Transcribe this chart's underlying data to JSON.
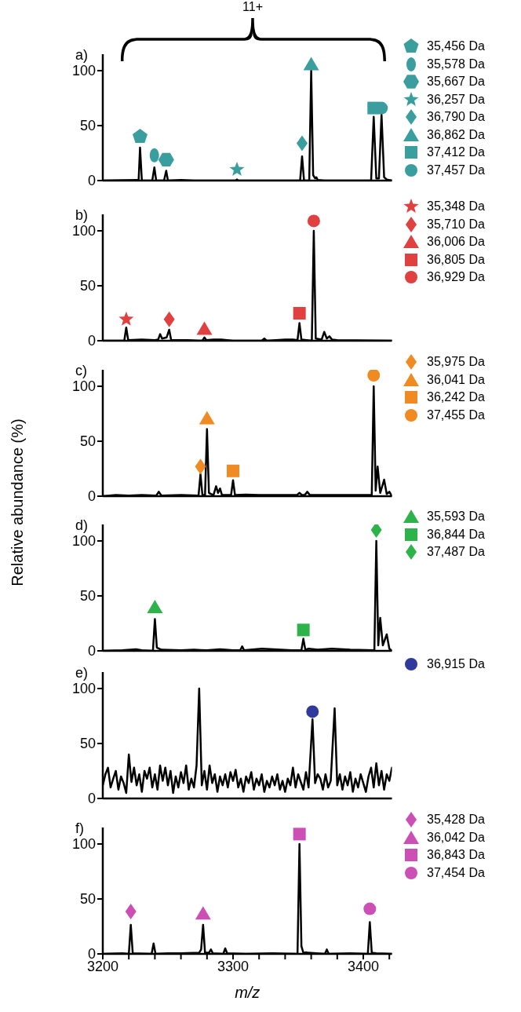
{
  "chart_data": [
    {
      "type": "line",
      "title": "a)",
      "annotations": [
        "11+"
      ],
      "xlim": [
        3200,
        3422
      ],
      "ylim": [
        0,
        115
      ],
      "yticks": [
        0,
        50,
        100
      ],
      "tick_labels": "y",
      "legend": "right",
      "series": [
        {
          "type": "line",
          "color": "#000000",
          "marker": "none",
          "x": [
            3200,
            3226,
            3227.5,
            3228.6,
            3230,
            3238,
            3239.6,
            3241,
            3247,
            3248.7,
            3250,
            3260,
            3270,
            3302,
            3303,
            3304,
            3351.5,
            3353,
            3354.5,
            3358.5,
            3360,
            3361.5,
            3363,
            3364,
            3365,
            3370,
            3406,
            3408,
            3410,
            3412,
            3414,
            3416,
            3418,
            3422
          ],
          "values": [
            0,
            0.5,
            0,
            30,
            0,
            0,
            12,
            0,
            0,
            9,
            0,
            0.5,
            0,
            0,
            1,
            0,
            0,
            22,
            0,
            0,
            100,
            5,
            2,
            3,
            0.5,
            0,
            0,
            58,
            2,
            2,
            60,
            3,
            1,
            0
          ]
        },
        {
          "type": "scatter",
          "name": "35,456 Da",
          "color": "#3a9e9e",
          "x": [
            3228.6
          ],
          "values": [
            40
          ]
        },
        {
          "type": "scatter",
          "name": "35,578 Da",
          "color": "#3a9e9e",
          "marker": "circle",
          "x": [
            3239.6
          ],
          "values": [
            23
          ]
        },
        {
          "type": "scatter",
          "name": "35,667 Da",
          "color": "#3a9e9e",
          "x": [
            3248.7
          ],
          "values": [
            19
          ]
        },
        {
          "type": "scatter",
          "name": "36,257 Da",
          "color": "#3a9e9e",
          "marker": "star",
          "x": [
            3303
          ],
          "values": [
            10
          ]
        },
        {
          "type": "scatter",
          "name": "36,790 Da",
          "color": "#3a9e9e",
          "marker": "diamond",
          "x": [
            3353
          ],
          "values": [
            34
          ]
        },
        {
          "type": "scatter",
          "name": "36,862 Da",
          "color": "#3a9e9e",
          "marker": "triangle",
          "x": [
            3360
          ],
          "values": [
            106
          ]
        },
        {
          "type": "scatter",
          "name": "37,412 Da",
          "color": "#3a9e9e",
          "marker": "square",
          "x": [
            3408
          ],
          "values": [
            66
          ]
        },
        {
          "type": "scatter",
          "name": "37,457 Da",
          "color": "#3a9e9e",
          "marker": "circle",
          "x": [
            3414
          ],
          "values": [
            66
          ]
        }
      ]
    },
    {
      "type": "line",
      "title": "b)",
      "xlim": [
        3200,
        3422
      ],
      "ylim": [
        0,
        115
      ],
      "yticks": [
        0,
        50,
        100
      ],
      "tick_labels": "y",
      "legend": "right",
      "series": [
        {
          "type": "line",
          "color": "#000000",
          "marker": "none",
          "x": [
            3200,
            3216.5,
            3218,
            3219.5,
            3230,
            3240,
            3242.5,
            3244,
            3245.5,
            3249,
            3251,
            3252.5,
            3265,
            3276.5,
            3278,
            3279.5,
            3285,
            3291,
            3300,
            3322,
            3324,
            3326,
            3340,
            3346,
            3349.5,
            3351,
            3352.5,
            3360.5,
            3362,
            3363.5,
            3368,
            3370,
            3372,
            3374,
            3376,
            3380,
            3422
          ],
          "values": [
            0,
            0,
            12,
            0.5,
            1,
            0.5,
            1,
            6,
            2,
            3,
            10,
            0.5,
            0.5,
            0,
            3,
            0.5,
            1,
            1,
            0,
            0,
            2,
            0,
            1,
            1,
            0.5,
            16,
            1,
            0,
            100,
            2,
            1,
            8,
            2,
            4,
            1,
            0.5,
            0
          ]
        },
        {
          "type": "scatter",
          "name": "35,348 Da",
          "color": "#e0403f",
          "marker": "star",
          "x": [
            3218
          ],
          "values": [
            19.5
          ]
        },
        {
          "type": "scatter",
          "name": "35,710 Da",
          "color": "#e0403f",
          "marker": "diamond",
          "x": [
            3251
          ],
          "values": [
            19.5
          ]
        },
        {
          "type": "scatter",
          "name": "36,006 Da",
          "color": "#e0403f",
          "marker": "triangle",
          "x": [
            3278
          ],
          "values": [
            11
          ]
        },
        {
          "type": "scatter",
          "name": "36,805 Da",
          "color": "#e0403f",
          "marker": "square",
          "x": [
            3351
          ],
          "values": [
            25
          ]
        },
        {
          "type": "scatter",
          "name": "36,929 Da",
          "color": "#e0403f",
          "marker": "circle",
          "x": [
            3362
          ],
          "values": [
            109
          ]
        }
      ]
    },
    {
      "type": "line",
      "title": "c)",
      "ylabel": "Relative abundance (%)",
      "xlim": [
        3200,
        3422
      ],
      "ylim": [
        0,
        115
      ],
      "yticks": [
        0,
        50,
        100
      ],
      "tick_labels": "y",
      "legend": "right",
      "series": [
        {
          "type": "line",
          "color": "#000000",
          "marker": "none",
          "x": [
            3200,
            3210,
            3220,
            3230,
            3241,
            3243,
            3245,
            3260,
            3273.5,
            3275,
            3276.5,
            3278.5,
            3280,
            3281.5,
            3283,
            3285,
            3287,
            3288.5,
            3290,
            3291.5,
            3298.5,
            3300,
            3301.5,
            3310,
            3320,
            3335,
            3349,
            3351,
            3353,
            3355,
            3357,
            3359,
            3380,
            3395,
            3406.5,
            3408,
            3409.5,
            3411,
            3413,
            3416,
            3418,
            3420,
            3422
          ],
          "values": [
            0,
            1,
            0.5,
            1,
            0.5,
            4,
            0.5,
            1,
            0.5,
            20,
            1,
            1,
            61,
            3,
            2,
            1,
            9,
            3,
            7,
            1,
            1,
            14.5,
            1,
            1.5,
            1,
            1,
            1,
            3,
            1,
            1,
            4,
            1,
            1,
            1,
            1,
            100,
            5,
            27,
            3,
            15,
            2,
            4,
            0
          ]
        },
        {
          "type": "scatter",
          "name": "35,975 Da",
          "color": "#f08a22",
          "marker": "diamond",
          "x": [
            3275
          ],
          "values": [
            27
          ]
        },
        {
          "type": "scatter",
          "name": "36,041 Da",
          "color": "#f08a22",
          "marker": "triangle",
          "x": [
            3280
          ],
          "values": [
            71
          ]
        },
        {
          "type": "scatter",
          "name": "36,242 Da",
          "color": "#f08a22",
          "marker": "square",
          "x": [
            3300
          ],
          "values": [
            23
          ]
        },
        {
          "type": "scatter",
          "name": "37,455 Da",
          "color": "#f08a22",
          "marker": "circle",
          "x": [
            3408
          ],
          "values": [
            110
          ]
        }
      ]
    },
    {
      "type": "line",
      "title": "d)",
      "xlim": [
        3200,
        3422
      ],
      "ylim": [
        0,
        115
      ],
      "yticks": [
        0,
        50,
        100
      ],
      "tick_labels": "y",
      "legend": "right",
      "series": [
        {
          "type": "line",
          "color": "#000000",
          "marker": "none",
          "x": [
            3200,
            3215,
            3225.5,
            3230,
            3238.5,
            3240,
            3241.5,
            3245,
            3260,
            3270,
            3280,
            3290,
            3300,
            3305.5,
            3307,
            3308.5,
            3322,
            3331,
            3345,
            3352.5,
            3354,
            3355.5,
            3358,
            3365,
            3376,
            3390,
            3408.5,
            3410,
            3411.5,
            3413,
            3415,
            3418,
            3420,
            3422
          ],
          "values": [
            0,
            0.5,
            1.5,
            0.5,
            0,
            29,
            3,
            1,
            0.5,
            1,
            0.5,
            1.5,
            0.5,
            0.5,
            4,
            0.5,
            2,
            1.5,
            0.5,
            0.5,
            11,
            1,
            2,
            1,
            2,
            1,
            0.5,
            100,
            5,
            30,
            5,
            15,
            2,
            0
          ]
        },
        {
          "type": "scatter",
          "name": "35,593 Da",
          "color": "#2db34a",
          "marker": "triangle",
          "x": [
            3240
          ],
          "values": [
            40
          ]
        },
        {
          "type": "scatter",
          "name": "36,844 Da",
          "color": "#2db34a",
          "marker": "square",
          "x": [
            3354
          ],
          "values": [
            19
          ]
        },
        {
          "type": "scatter",
          "name": "37,487 Da",
          "color": "#2db34a",
          "marker": "diamond",
          "x": [
            3410
          ],
          "values": [
            110
          ]
        }
      ]
    },
    {
      "type": "line",
      "title": "e)",
      "xlim": [
        3200,
        3422
      ],
      "ylim": [
        0,
        115
      ],
      "yticks": [
        0,
        50,
        100
      ],
      "tick_labels": "y",
      "legend": "right",
      "series": [
        {
          "type": "line",
          "color": "#000000",
          "marker": "none",
          "x": [
            3200,
            3202,
            3204,
            3206,
            3208,
            3210,
            3212,
            3214,
            3216,
            3218,
            3220,
            3222,
            3224,
            3226,
            3228,
            3230,
            3232,
            3234,
            3236,
            3238,
            3240,
            3242,
            3244,
            3246,
            3248,
            3250,
            3252,
            3254,
            3256,
            3258,
            3260,
            3262,
            3264,
            3266,
            3268,
            3270,
            3272,
            3274,
            3276,
            3278,
            3280,
            3282,
            3284,
            3286,
            3288,
            3290,
            3292,
            3294,
            3296,
            3298,
            3300,
            3302,
            3304,
            3306,
            3308,
            3310,
            3312,
            3314,
            3316,
            3318,
            3320,
            3322,
            3324,
            3326,
            3328,
            3330,
            3332,
            3334,
            3336,
            3338,
            3340,
            3342,
            3344,
            3346,
            3348,
            3350,
            3352,
            3354,
            3356,
            3358,
            3361,
            3363,
            3365,
            3367,
            3369,
            3371,
            3373,
            3375,
            3378,
            3380,
            3382,
            3384,
            3386,
            3388,
            3390,
            3392,
            3394,
            3396,
            3398,
            3400,
            3402,
            3404,
            3406,
            3408,
            3410,
            3412,
            3414,
            3416,
            3418,
            3420,
            3422
          ],
          "values": [
            12,
            22,
            28,
            10,
            18,
            25,
            8,
            20,
            14,
            5,
            40,
            15,
            28,
            12,
            22,
            6,
            25,
            18,
            28,
            10,
            22,
            8,
            30,
            16,
            28,
            12,
            25,
            5,
            20,
            10,
            24,
            14,
            30,
            8,
            18,
            10,
            30,
            100,
            12,
            25,
            8,
            30,
            14,
            22,
            6,
            20,
            12,
            22,
            10,
            24,
            16,
            26,
            10,
            18,
            6,
            20,
            14,
            24,
            8,
            18,
            12,
            22,
            6,
            16,
            10,
            20,
            12,
            22,
            8,
            16,
            6,
            18,
            12,
            28,
            10,
            22,
            15,
            8,
            24,
            10,
            72,
            14,
            22,
            18,
            8,
            22,
            10,
            16,
            82,
            12,
            22,
            8,
            20,
            12,
            24,
            6,
            18,
            10,
            22,
            14,
            6,
            20,
            28,
            10,
            32,
            12,
            25,
            8,
            22,
            16,
            28
          ]
        },
        {
          "type": "scatter",
          "name": "36,915 Da",
          "color": "#2f3a9c",
          "marker": "circle",
          "x": [
            3361
          ],
          "values": [
            79
          ]
        }
      ]
    },
    {
      "type": "line",
      "title": "f)",
      "xlabel": "m/z",
      "xlim": [
        3200,
        3422
      ],
      "ylim": [
        0,
        115
      ],
      "yticks": [
        0,
        50,
        100
      ],
      "xticks": [
        3200,
        {
          "value": 3220,
          "label": null
        },
        {
          "value": 3240,
          "label": null
        },
        {
          "value": 3260,
          "label": null
        },
        {
          "value": 3280,
          "label": null
        },
        3300,
        {
          "value": 3320,
          "label": null
        },
        {
          "value": 3340,
          "label": null
        },
        {
          "value": 3360,
          "label": null
        },
        {
          "value": 3380,
          "label": null
        },
        3400,
        {
          "value": 3420,
          "label": null
        }
      ],
      "legend": "right",
      "series": [
        {
          "type": "line",
          "color": "#000000",
          "marker": "none",
          "x": [
            3200,
            3215,
            3220,
            3221.5,
            3223,
            3237.5,
            3239,
            3240.5,
            3250,
            3260,
            3274,
            3275.5,
            3277,
            3278.5,
            3281.5,
            3283,
            3284.5,
            3292.5,
            3294,
            3295.5,
            3310,
            3330,
            3349.5,
            3351,
            3352.5,
            3354,
            3356,
            3358,
            3370.5,
            3372,
            3373.5,
            3390,
            3403.5,
            3405,
            3406.5,
            3410,
            3422
          ],
          "values": [
            0,
            0.5,
            0,
            26.5,
            0.5,
            0,
            9.5,
            0,
            0.5,
            0.5,
            1,
            4,
            26.5,
            1,
            1,
            4,
            0.5,
            0,
            5,
            0.5,
            0,
            0.5,
            0,
            100,
            7,
            1,
            1.5,
            1,
            0,
            4,
            0,
            0.5,
            0,
            29,
            1,
            0.5,
            0
          ]
        },
        {
          "type": "scatter",
          "name": "35,428 Da",
          "color": "#cc4fb5",
          "marker": "diamond",
          "x": [
            3221.5
          ],
          "values": [
            38.5
          ]
        },
        {
          "type": "scatter",
          "name": "36,042 Da",
          "color": "#cc4fb5",
          "marker": "triangle",
          "x": [
            3277
          ],
          "values": [
            37
          ]
        },
        {
          "type": "scatter",
          "name": "36,843 Da",
          "color": "#cc4fb5",
          "marker": "square",
          "x": [
            3351
          ],
          "values": [
            109
          ]
        },
        {
          "type": "scatter",
          "name": "37,454 Da",
          "color": "#cc4fb5",
          "marker": "circle",
          "x": [
            3405
          ],
          "values": [
            41
          ]
        }
      ]
    }
  ]
}
